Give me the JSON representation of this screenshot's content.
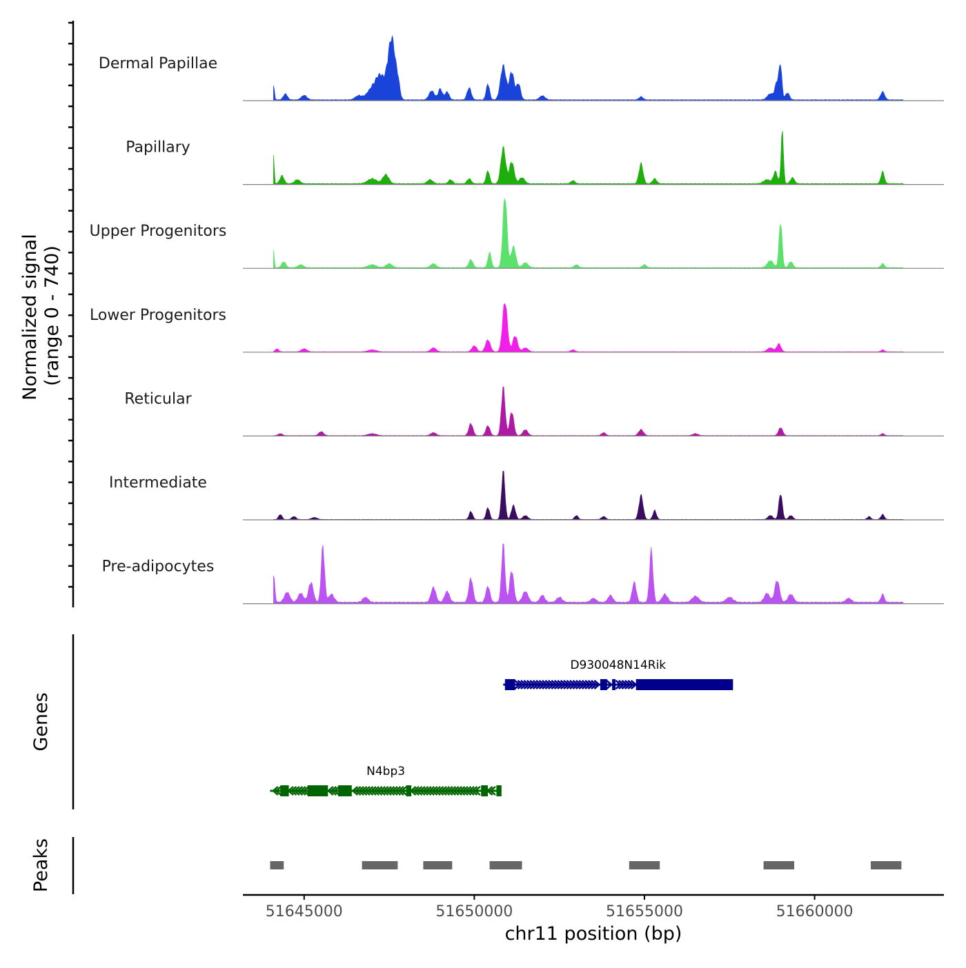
{
  "chart_data": {
    "type": "area",
    "chromosome": "chr11",
    "x_range": [
      51643200,
      51663800
    ],
    "xlabel": "chr11 position (bp)",
    "x_ticks": [
      51645000,
      51650000,
      51655000,
      51660000
    ],
    "x_tick_labels": [
      "51645000",
      "51650000",
      "51655000",
      "51660000"
    ],
    "signal_axis_label_line1": "Normalized signal",
    "signal_axis_label_line2": "(range 0 - 740)",
    "y_range": [
      0,
      740
    ],
    "genes_label": "Genes",
    "peaks_label": "Peaks",
    "signal_x_start": 51644100,
    "signal_x_end": 51662600,
    "tracks": [
      {
        "name": "Dermal Papillae",
        "color": "#1A44D9",
        "baseline": 12,
        "peaks": [
          [
            51644100,
            160,
            25
          ],
          [
            51644450,
            60,
            60
          ],
          [
            51645000,
            45,
            80
          ],
          [
            51646600,
            40,
            100
          ],
          [
            51647000,
            110,
            150
          ],
          [
            51647250,
            220,
            130
          ],
          [
            51647520,
            420,
            90
          ],
          [
            51647620,
            320,
            70
          ],
          [
            51647750,
            200,
            60
          ],
          [
            51648750,
            90,
            80
          ],
          [
            51649000,
            110,
            60
          ],
          [
            51649200,
            80,
            60
          ],
          [
            51649850,
            120,
            60
          ],
          [
            51650400,
            160,
            50
          ],
          [
            51650850,
            340,
            80
          ],
          [
            51651100,
            280,
            70
          ],
          [
            51651300,
            160,
            60
          ],
          [
            51652000,
            40,
            80
          ],
          [
            51654900,
            30,
            60
          ],
          [
            51658700,
            60,
            90
          ],
          [
            51658900,
            180,
            60
          ],
          [
            51659000,
            320,
            40
          ],
          [
            51659200,
            70,
            60
          ],
          [
            51662000,
            80,
            60
          ]
        ]
      },
      {
        "name": "Papillary",
        "color": "#1EAF0D",
        "baseline": 12,
        "peaks": [
          [
            51644100,
            320,
            20
          ],
          [
            51644350,
            80,
            60
          ],
          [
            51644800,
            40,
            80
          ],
          [
            51647000,
            50,
            130
          ],
          [
            51647400,
            90,
            90
          ],
          [
            51648700,
            40,
            80
          ],
          [
            51649300,
            40,
            60
          ],
          [
            51649850,
            50,
            60
          ],
          [
            51650400,
            130,
            50
          ],
          [
            51650850,
            360,
            70
          ],
          [
            51651100,
            220,
            70
          ],
          [
            51651400,
            60,
            80
          ],
          [
            51652900,
            30,
            60
          ],
          [
            51654900,
            200,
            60
          ],
          [
            51655300,
            50,
            60
          ],
          [
            51658600,
            40,
            100
          ],
          [
            51658850,
            120,
            60
          ],
          [
            51659050,
            520,
            35
          ],
          [
            51659350,
            60,
            60
          ],
          [
            51662000,
            120,
            50
          ]
        ]
      },
      {
        "name": "Upper Progenitors",
        "color": "#5CE16C",
        "baseline": 10,
        "peaks": [
          [
            51644100,
            200,
            20
          ],
          [
            51644400,
            60,
            60
          ],
          [
            51644900,
            30,
            80
          ],
          [
            51647000,
            30,
            120
          ],
          [
            51647500,
            40,
            90
          ],
          [
            51648800,
            40,
            80
          ],
          [
            51649900,
            80,
            60
          ],
          [
            51650450,
            150,
            50
          ],
          [
            51650900,
            720,
            60
          ],
          [
            51651150,
            210,
            70
          ],
          [
            51651500,
            50,
            80
          ],
          [
            51653000,
            30,
            60
          ],
          [
            51655000,
            30,
            60
          ],
          [
            51658700,
            70,
            90
          ],
          [
            51659000,
            460,
            45
          ],
          [
            51659300,
            60,
            60
          ],
          [
            51662000,
            40,
            50
          ]
        ]
      },
      {
        "name": "Lower Progenitors",
        "color": "#F21FEA",
        "baseline": 6,
        "peaks": [
          [
            51644200,
            30,
            50
          ],
          [
            51645000,
            30,
            80
          ],
          [
            51647000,
            20,
            120
          ],
          [
            51648800,
            40,
            80
          ],
          [
            51650000,
            60,
            70
          ],
          [
            51650400,
            120,
            70
          ],
          [
            51650900,
            500,
            70
          ],
          [
            51651200,
            160,
            70
          ],
          [
            51651500,
            40,
            80
          ],
          [
            51652900,
            20,
            60
          ],
          [
            51658700,
            40,
            90
          ],
          [
            51658950,
            80,
            60
          ],
          [
            51662000,
            20,
            50
          ]
        ]
      },
      {
        "name": "Reticular",
        "color": "#AE1AA3",
        "baseline": 6,
        "peaks": [
          [
            51644300,
            20,
            60
          ],
          [
            51645500,
            40,
            70
          ],
          [
            51647000,
            20,
            120
          ],
          [
            51648800,
            30,
            80
          ],
          [
            51649900,
            120,
            60
          ],
          [
            51650400,
            100,
            60
          ],
          [
            51650850,
            480,
            55
          ],
          [
            51651100,
            240,
            60
          ],
          [
            51651500,
            60,
            70
          ],
          [
            51653800,
            30,
            60
          ],
          [
            51654900,
            60,
            70
          ],
          [
            51656500,
            20,
            80
          ],
          [
            51659000,
            80,
            60
          ],
          [
            51662000,
            20,
            50
          ]
        ]
      },
      {
        "name": "Intermediate",
        "color": "#3A0D60",
        "baseline": 6,
        "peaks": [
          [
            51644300,
            50,
            50
          ],
          [
            51644700,
            30,
            60
          ],
          [
            51645300,
            20,
            80
          ],
          [
            51649900,
            80,
            50
          ],
          [
            51650400,
            120,
            50
          ],
          [
            51650850,
            480,
            50
          ],
          [
            51651150,
            140,
            60
          ],
          [
            51651500,
            40,
            70
          ],
          [
            51653000,
            40,
            50
          ],
          [
            51653800,
            30,
            60
          ],
          [
            51654900,
            240,
            60
          ],
          [
            51655300,
            90,
            50
          ],
          [
            51658700,
            40,
            70
          ],
          [
            51659000,
            260,
            50
          ],
          [
            51659300,
            40,
            60
          ],
          [
            51661600,
            30,
            50
          ],
          [
            51662000,
            50,
            50
          ]
        ]
      },
      {
        "name": "Pre-adipocytes",
        "color": "#BA53F1",
        "baseline": 20,
        "peaks": [
          [
            51644100,
            300,
            35
          ],
          [
            51644500,
            100,
            80
          ],
          [
            51644900,
            90,
            80
          ],
          [
            51645200,
            200,
            70
          ],
          [
            51645550,
            560,
            50
          ],
          [
            51645800,
            80,
            80
          ],
          [
            51646800,
            50,
            80
          ],
          [
            51648800,
            150,
            70
          ],
          [
            51649200,
            110,
            70
          ],
          [
            51649900,
            240,
            60
          ],
          [
            51650400,
            160,
            60
          ],
          [
            51650850,
            580,
            50
          ],
          [
            51651100,
            320,
            60
          ],
          [
            51651500,
            110,
            80
          ],
          [
            51652000,
            70,
            70
          ],
          [
            51652500,
            50,
            80
          ],
          [
            51653500,
            40,
            80
          ],
          [
            51654000,
            70,
            70
          ],
          [
            51654700,
            200,
            60
          ],
          [
            51655200,
            520,
            50
          ],
          [
            51655600,
            80,
            80
          ],
          [
            51656500,
            60,
            100
          ],
          [
            51657500,
            50,
            100
          ],
          [
            51658600,
            90,
            80
          ],
          [
            51658900,
            220,
            70
          ],
          [
            51659300,
            80,
            80
          ],
          [
            51661000,
            40,
            80
          ],
          [
            51662000,
            80,
            50
          ]
        ]
      }
    ],
    "genes": [
      {
        "name": "D930048N14Rik",
        "strand": "+",
        "color": "#00008B",
        "start": 51650850,
        "end": 51657600,
        "exons": [
          [
            51650900,
            51651200
          ],
          [
            51653700,
            51653900
          ],
          [
            51654050,
            51654150
          ],
          [
            51654750,
            51657600
          ]
        ]
      },
      {
        "name": "N4bp3",
        "strand": "-",
        "color": "#006400",
        "start": 51644000,
        "end": 51650800,
        "exons": [
          [
            51644300,
            51644550
          ],
          [
            51645100,
            51645700
          ],
          [
            51646000,
            51646400
          ],
          [
            51648000,
            51648150
          ],
          [
            51650200,
            51650400
          ],
          [
            51650650,
            51650800
          ]
        ]
      }
    ],
    "peaks": [
      [
        51644000,
        51644400
      ],
      [
        51646700,
        51647750
      ],
      [
        51648500,
        51649350
      ],
      [
        51650450,
        51651400
      ],
      [
        51654550,
        51655450
      ],
      [
        51658500,
        51659400
      ],
      [
        51661650,
        51662550
      ]
    ],
    "peak_color": "#666666"
  }
}
